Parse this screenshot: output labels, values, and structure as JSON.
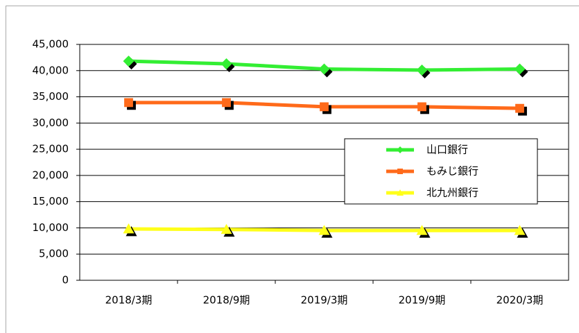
{
  "chart_data": {
    "type": "line",
    "categories": [
      "2018/3期",
      "2018/9期",
      "2019/3期",
      "2019/9期",
      "2020/3期"
    ],
    "series": [
      {
        "name": "山口銀行",
        "color": "#33ee33",
        "marker": "diamond",
        "values": [
          41800,
          41300,
          40300,
          40100,
          40300
        ]
      },
      {
        "name": "もみじ銀行",
        "color": "#ff6a1a",
        "marker": "square",
        "values": [
          33900,
          33900,
          33100,
          33100,
          32800
        ]
      },
      {
        "name": "北九州銀行",
        "color": "#ffff1a",
        "marker": "triangle",
        "values": [
          9800,
          9700,
          9500,
          9500,
          9500
        ]
      }
    ],
    "ylim": [
      0,
      45000
    ],
    "yticks": [
      0,
      {
        "value": 5000,
        "label": "5,000"
      },
      {
        "value": 10000,
        "label": "10,000"
      },
      {
        "value": 15000,
        "label": "15,000"
      },
      {
        "value": 20000,
        "label": "20,000"
      },
      {
        "value": 25000,
        "label": "25,000"
      },
      {
        "value": 30000,
        "label": "30,000"
      },
      {
        "value": 35000,
        "label": "35,000"
      },
      {
        "value": 40000,
        "label": "40,000"
      },
      {
        "value": 45000,
        "label": "45,000"
      }
    ],
    "grid": true,
    "legend": "right"
  }
}
